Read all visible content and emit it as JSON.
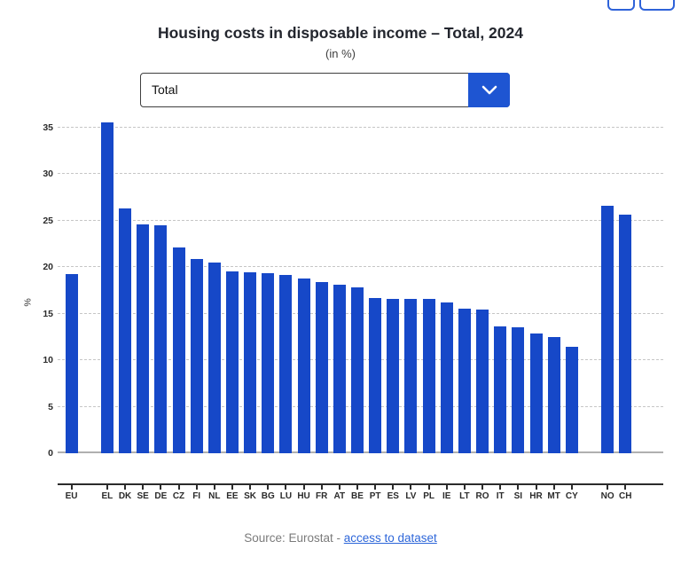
{
  "header": {
    "title": "Housing costs in disposable income – Total, 2024",
    "subtitle": "(in %)"
  },
  "filter": {
    "selected": "Total"
  },
  "chart_data": {
    "type": "bar",
    "title": "Housing costs in disposable income – Total, 2024",
    "subtitle": "(in %)",
    "ylabel": "%",
    "xlabel": "",
    "ylim": [
      0,
      36
    ],
    "yticks": [
      0,
      5,
      10,
      15,
      20,
      25,
      30,
      35
    ],
    "grid": "horizontal-dashed",
    "legend": "none",
    "categories": [
      "EU",
      "EL",
      "DK",
      "SE",
      "DE",
      "CZ",
      "FI",
      "NL",
      "EE",
      "SK",
      "BG",
      "LU",
      "HU",
      "FR",
      "AT",
      "BE",
      "PT",
      "ES",
      "LV",
      "PL",
      "IE",
      "LT",
      "RO",
      "IT",
      "SI",
      "HR",
      "MT",
      "CY",
      "NO",
      "CH"
    ],
    "values": [
      19.2,
      35.5,
      26.3,
      24.6,
      24.5,
      22.1,
      20.9,
      20.5,
      19.5,
      19.4,
      19.3,
      19.1,
      18.8,
      18.4,
      18.1,
      17.8,
      16.7,
      16.6,
      16.6,
      16.6,
      16.2,
      15.5,
      15.4,
      13.6,
      13.5,
      12.9,
      12.5,
      11.4,
      26.6,
      25.6
    ],
    "gap_after": [
      "EU",
      "CY"
    ],
    "bar_color": "#1648c8"
  },
  "source": {
    "prefix": "Source: Eurostat - ",
    "link_text": "access to dataset"
  },
  "colors": {
    "bar": "#1648c8",
    "accent_button": "#1e55d2",
    "toolbar_border": "#2e62d9",
    "link": "#2d66d9",
    "title_text": "#23262e",
    "source_text": "#7b7b7b"
  }
}
